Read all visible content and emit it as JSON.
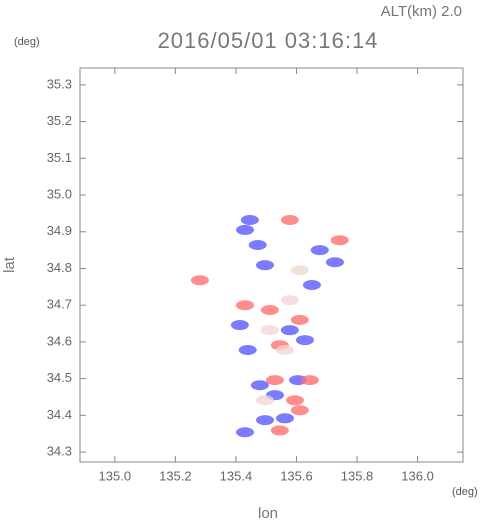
{
  "chart_data": {
    "type": "scatter",
    "title": "2016/05/01 03:16:14",
    "subtitle": "ALT(km) 2.0",
    "x_label": "lon",
    "y_label": "lat",
    "x_unit": "(deg)",
    "y_unit": "(deg)",
    "xlim": [
      134.885,
      136.15
    ],
    "ylim": [
      34.273,
      35.346
    ],
    "xticks": [
      {
        "value": 135.0,
        "label": "135.0"
      },
      135.2,
      135.4,
      135.6,
      135.8,
      {
        "value": 136.0,
        "label": "136.0"
      }
    ],
    "yticks": [
      34.3,
      34.4,
      34.5,
      34.6,
      34.7,
      34.8,
      34.9,
      {
        "value": 35.0,
        "label": "35.0"
      },
      35.1,
      35.2,
      35.3
    ],
    "series": [
      {
        "color": "#5a5aff",
        "x": [
          135.43,
          135.446,
          135.472,
          135.496,
          135.677,
          135.727,
          135.651,
          135.413,
          135.578,
          135.628,
          135.439,
          135.479,
          135.529,
          135.605,
          135.496,
          135.562,
          135.43
        ],
        "values": [
          34.905,
          34.932,
          34.864,
          34.809,
          34.85,
          34.817,
          34.755,
          34.646,
          34.632,
          34.605,
          34.578,
          34.482,
          34.455,
          34.496,
          34.387,
          34.392,
          34.354
        ]
      },
      {
        "color": "#ff7070",
        "x": [
          135.43,
          135.512,
          135.611,
          135.545,
          135.595,
          135.611,
          135.545,
          135.281,
          135.743,
          135.578,
          135.529,
          135.644
        ],
        "values": [
          34.7,
          34.687,
          34.66,
          34.591,
          34.441,
          34.414,
          34.359,
          34.768,
          34.877,
          34.932,
          34.496,
          34.496
        ]
      },
      {
        "color": "#f2d6d6",
        "x": [
          135.512,
          135.562,
          135.611,
          135.496,
          135.578
        ],
        "values": [
          34.632,
          34.578,
          34.795,
          34.441,
          34.714
        ]
      }
    ]
  }
}
